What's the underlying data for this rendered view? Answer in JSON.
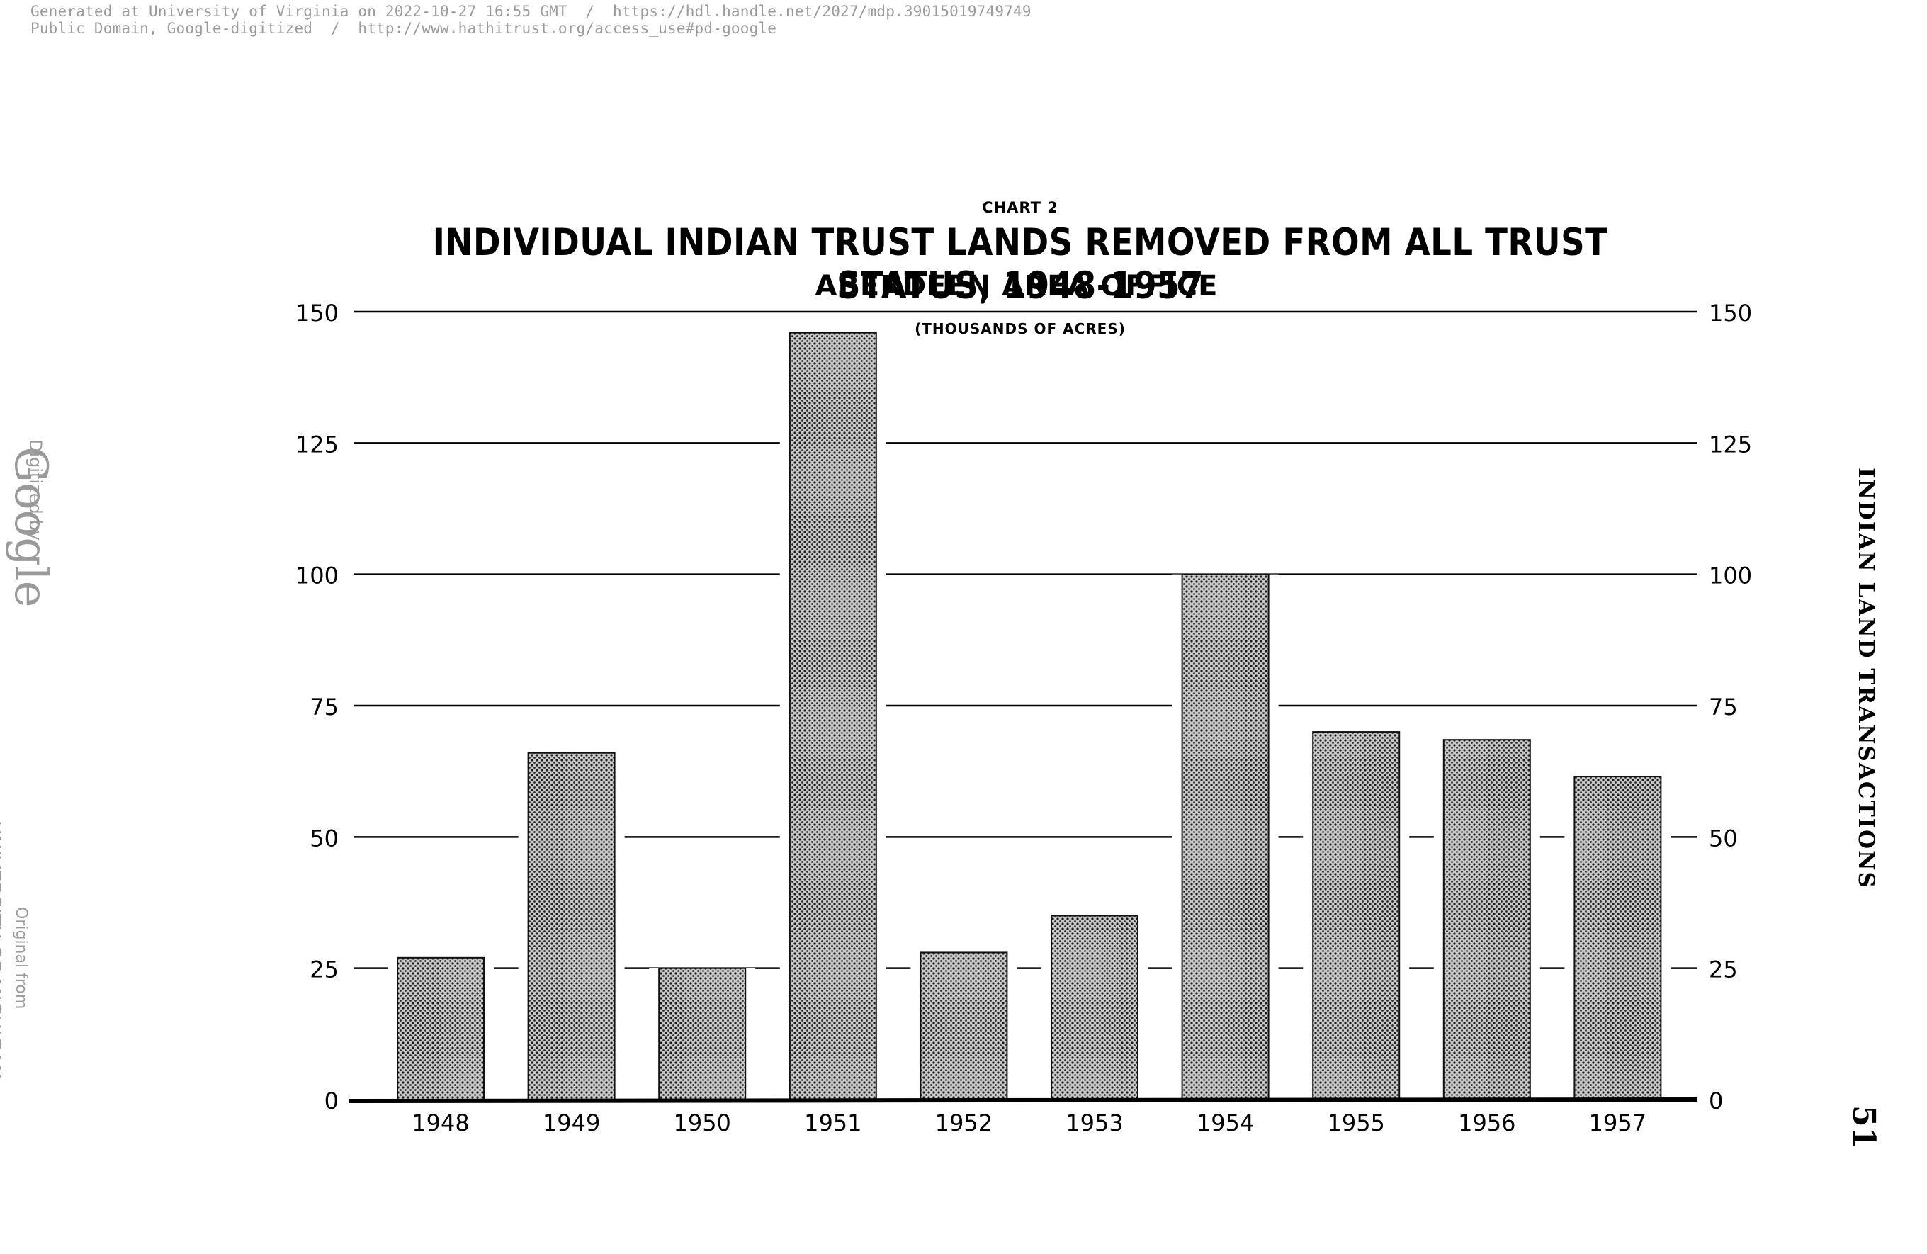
{
  "header": {
    "line1": "Generated at University of Virginia on 2022-10-27 16:55 GMT  /  https://hdl.handle.net/2027/mdp.39015019749749",
    "line2": "Public Domain, Google-digitized  /  http://www.hathitrust.org/access_use#pd-google"
  },
  "watermark": {
    "digitized_by": "Digitized by",
    "google": "Google",
    "original_from": "Original from",
    "university": "UNIVERSITY OF MICHIGAN"
  },
  "page": {
    "running_head": "INDIAN LAND TRANSACTIONS",
    "number": "51"
  },
  "colors": {
    "bar_fill": "#c8c8c8",
    "bar_dots": "#1a1a1a",
    "gridline": "#000000"
  },
  "chart_data": {
    "type": "bar",
    "kicker": "CHART 2",
    "title": "INDIVIDUAL INDIAN TRUST LANDS REMOVED FROM ALL TRUST STATUS, 1948-1957",
    "subtitle": "ABERDEEN AREA OFFICE",
    "units": "(THOUSANDS OF ACRES)",
    "categories": [
      "1948",
      "1949",
      "1950",
      "1951",
      "1952",
      "1953",
      "1954",
      "1955",
      "1956",
      "1957"
    ],
    "values": [
      27,
      66,
      25,
      146,
      28,
      35,
      100,
      70,
      68.5,
      61.5
    ],
    "ylim": [
      0,
      150
    ],
    "yticks": [
      "0",
      "25",
      "50",
      "75",
      "100",
      "125",
      "150"
    ],
    "grid": true,
    "axis_labels_both_sides": true
  }
}
